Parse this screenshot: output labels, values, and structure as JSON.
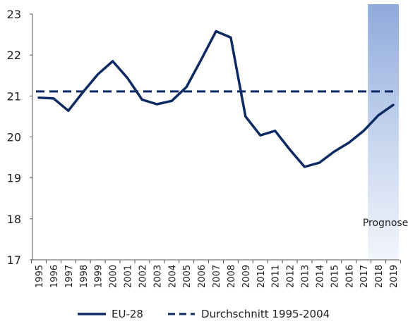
{
  "chart_data": {
    "type": "line",
    "x": [
      "1995",
      "1996",
      "1997",
      "1998",
      "1999",
      "2000",
      "2001",
      "2002",
      "2003",
      "2004",
      "2005",
      "2006",
      "2007",
      "2008",
      "2009",
      "2010",
      "2011",
      "2012",
      "2013",
      "2014",
      "2015",
      "2016",
      "2017",
      "2018",
      "2019"
    ],
    "series": [
      {
        "name": "EU-28",
        "style": "solid",
        "color": "#0d2a63",
        "values": [
          20.96,
          20.94,
          20.64,
          21.1,
          21.53,
          21.85,
          21.44,
          20.91,
          20.8,
          20.88,
          21.22,
          21.89,
          22.58,
          22.43,
          20.5,
          20.04,
          20.15,
          19.69,
          19.27,
          19.37,
          19.64,
          19.86,
          20.15,
          20.53,
          20.78
        ]
      },
      {
        "name": "Durchschnitt 1995-2004",
        "style": "dashed",
        "color": "#0d2a63",
        "values": [
          21.11,
          21.11,
          21.11,
          21.11,
          21.11,
          21.11,
          21.11,
          21.11,
          21.11,
          21.11,
          21.11,
          21.11,
          21.11,
          21.11,
          21.11,
          21.11,
          21.11,
          21.11,
          21.11,
          21.11,
          21.11,
          21.11,
          21.11,
          21.11,
          21.11
        ]
      }
    ],
    "ylim": [
      17,
      23
    ],
    "yticks": [
      "17",
      "18",
      "19",
      "20",
      "21",
      "22",
      "23"
    ],
    "forecast": {
      "from": "2017",
      "to": "2019",
      "label": "Prognose",
      "color": "#8faadc"
    },
    "legend": {
      "position": "bottom"
    },
    "grid": false
  }
}
